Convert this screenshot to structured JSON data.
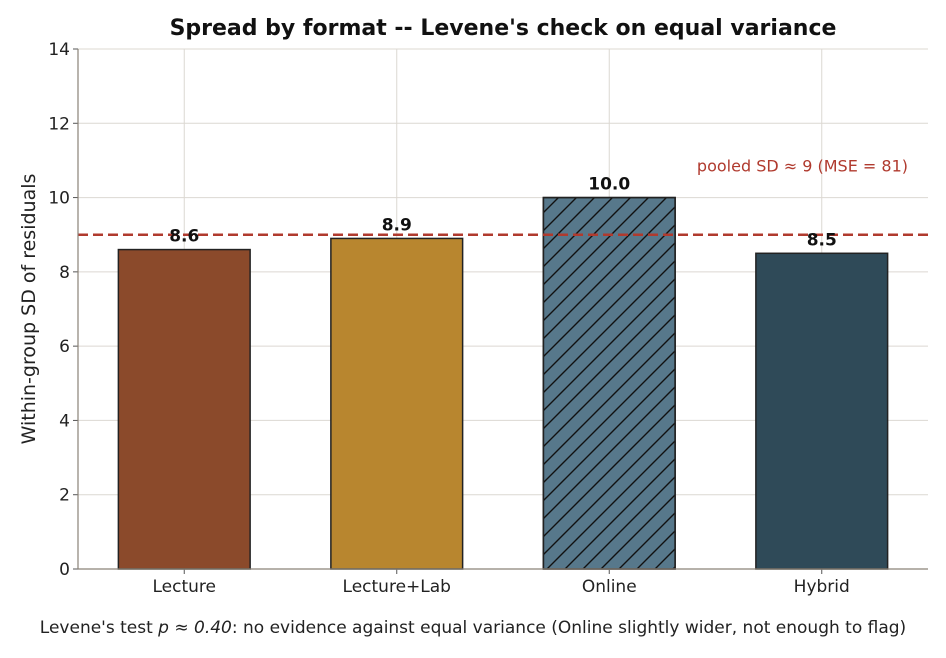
{
  "chart_data": {
    "type": "bar",
    "title": "Spread by format -- Levene's check on equal variance",
    "xlabel": "",
    "ylabel": "Within-group SD of residuals",
    "ylim": [
      0,
      14
    ],
    "yticks": [
      "0",
      "2",
      "4",
      "6",
      "8",
      "10",
      "12",
      "14"
    ],
    "categories": [
      "Lecture",
      "Lecture+Lab",
      "Online",
      "Hybrid"
    ],
    "values": [
      8.6,
      8.9,
      10.0,
      8.5
    ],
    "value_labels": [
      "8.6",
      "8.9",
      "10.0",
      "8.5"
    ],
    "colors": [
      "#8b4a2b",
      "#b8862f",
      "#57788b",
      "#2f4a58"
    ],
    "hatched": [
      false,
      false,
      true,
      false
    ],
    "reference_line": {
      "value": 9,
      "color": "#b03a2e",
      "style": "dashed"
    },
    "annotation": "pooled SD ≈ 9  (MSE = 81)",
    "grid": true,
    "footnote": {
      "prefix": "Levene's test ",
      "stat": "p ≈ 0.40",
      "suffix": ": no evidence against equal variance (Online slightly wider, not enough to flag)"
    }
  }
}
